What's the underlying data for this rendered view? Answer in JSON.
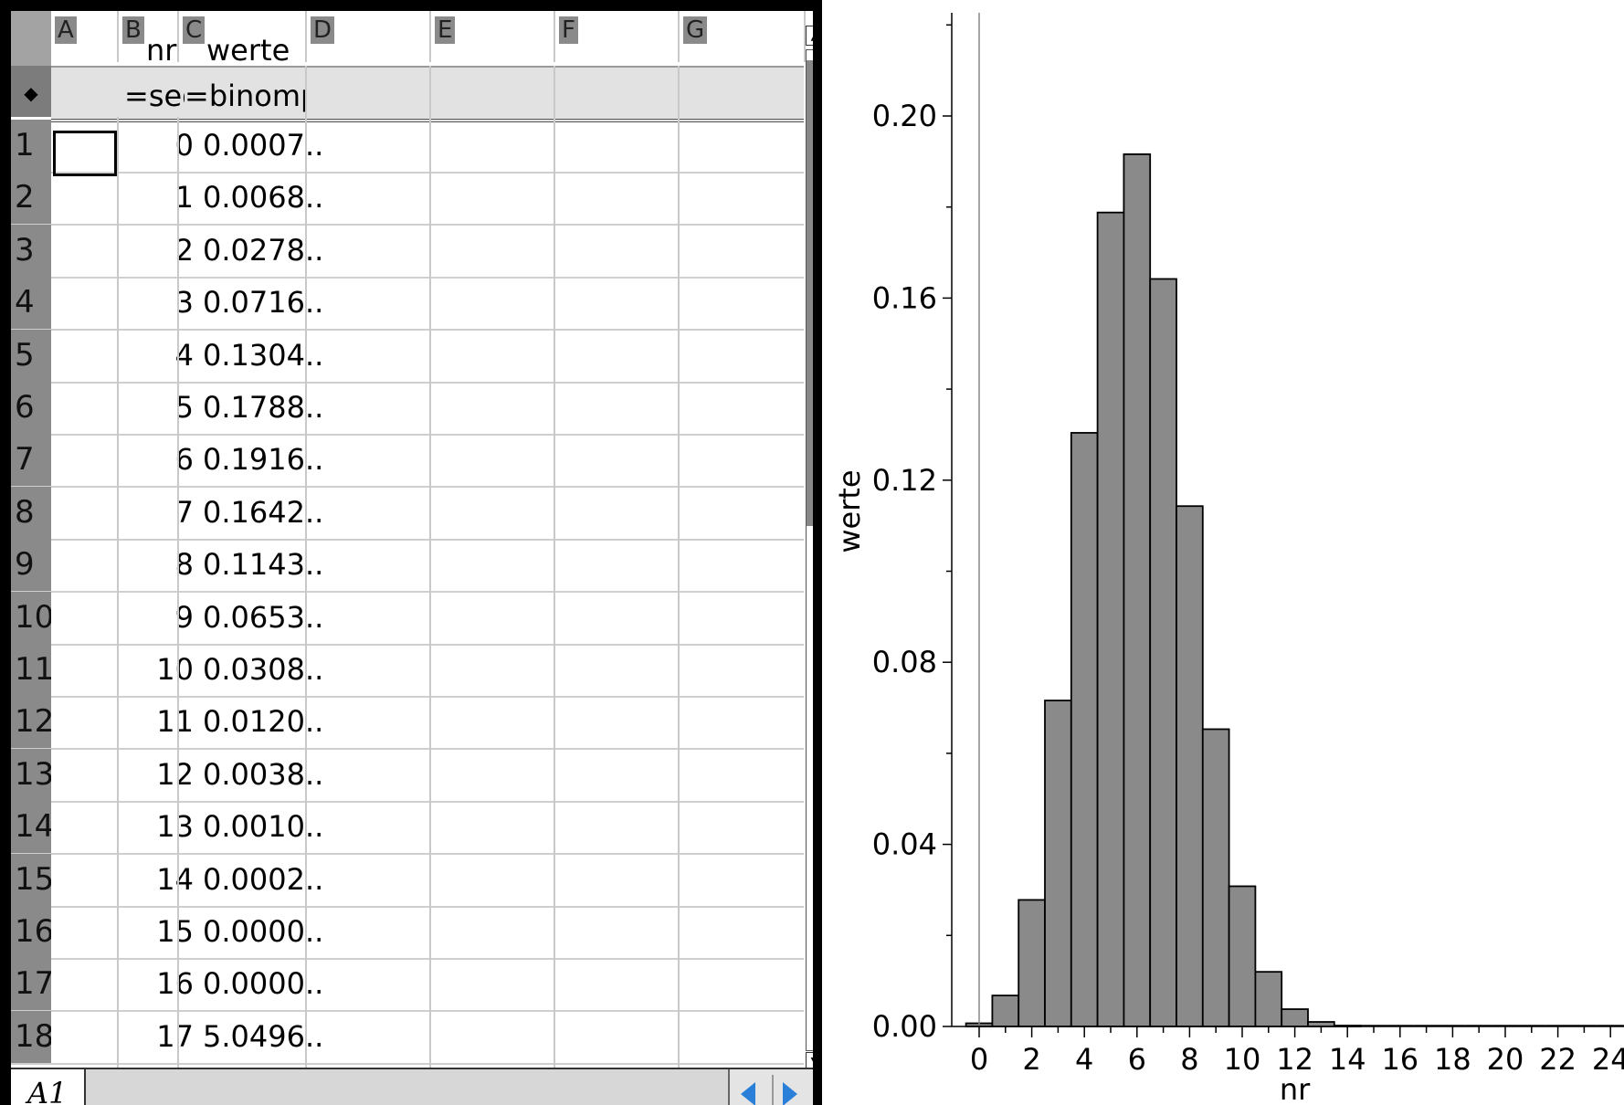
{
  "spreadsheet": {
    "columns": [
      {
        "letter": "A",
        "name": ""
      },
      {
        "letter": "B",
        "name": "nr"
      },
      {
        "letter": "C",
        "name": "werte"
      },
      {
        "letter": "D",
        "name": ""
      },
      {
        "letter": "E",
        "name": ""
      },
      {
        "letter": "F",
        "name": ""
      },
      {
        "letter": "G",
        "name": ""
      }
    ],
    "formula_marker": "◆",
    "formulas": {
      "B": "=seq",
      "C": "=binomp"
    },
    "rows": [
      {
        "n": "1",
        "nr": "0",
        "werte": "0.0007.."
      },
      {
        "n": "2",
        "nr": "1",
        "werte": "0.0068.."
      },
      {
        "n": "3",
        "nr": "2",
        "werte": "0.0278.."
      },
      {
        "n": "4",
        "nr": "3",
        "werte": "0.0716.."
      },
      {
        "n": "5",
        "nr": "4",
        "werte": "0.1304.."
      },
      {
        "n": "6",
        "nr": "5",
        "werte": "0.1788.."
      },
      {
        "n": "7",
        "nr": "6",
        "werte": "0.1916.."
      },
      {
        "n": "8",
        "nr": "7",
        "werte": "0.1642.."
      },
      {
        "n": "9",
        "nr": "8",
        "werte": "0.1143.."
      },
      {
        "n": "10",
        "nr": "9",
        "werte": "0.0653.."
      },
      {
        "n": "11",
        "nr": "10",
        "werte": "0.0308.."
      },
      {
        "n": "12",
        "nr": "11",
        "werte": "0.0120.."
      },
      {
        "n": "13",
        "nr": "12",
        "werte": "0.0038.."
      },
      {
        "n": "14",
        "nr": "13",
        "werte": "0.0010.."
      },
      {
        "n": "15",
        "nr": "14",
        "werte": "0.0002.."
      },
      {
        "n": "16",
        "nr": "15",
        "werte": "0.0000.."
      },
      {
        "n": "17",
        "nr": "16",
        "werte": "0.0000.."
      },
      {
        "n": "18",
        "nr": "17",
        "werte": "5.0496.."
      }
    ],
    "selected_cell": "A1",
    "scroll_up_glyph": "▲",
    "scroll_down_glyph": "▼"
  },
  "chart_data": {
    "type": "bar",
    "xlabel": "nr",
    "ylabel": "werte",
    "x": [
      0,
      1,
      2,
      3,
      4,
      5,
      6,
      7,
      8,
      9,
      10,
      11,
      12,
      13,
      14,
      15,
      16,
      17,
      18,
      19,
      20,
      21,
      22,
      23,
      24,
      25
    ],
    "values": [
      0.0007,
      0.0068,
      0.0278,
      0.0716,
      0.1304,
      0.1788,
      0.1916,
      0.1642,
      0.1143,
      0.0653,
      0.0308,
      0.012,
      0.0038,
      0.001,
      0.0002,
      0.0,
      0.0,
      0.0,
      0.0,
      0.0,
      0.0,
      0.0,
      0.0,
      0.0,
      0.0,
      0.0
    ],
    "xlim": [
      -1,
      25
    ],
    "ylim": [
      0,
      0.22
    ],
    "xticks": [
      0,
      2,
      4,
      6,
      8,
      10,
      12,
      14,
      16,
      18,
      20,
      22,
      24
    ],
    "yticks": [
      "0.00",
      "0.04",
      "0.08",
      "0.12",
      "0.16",
      "0.20"
    ],
    "bar_color": "#8a8a8a",
    "grid": false
  }
}
